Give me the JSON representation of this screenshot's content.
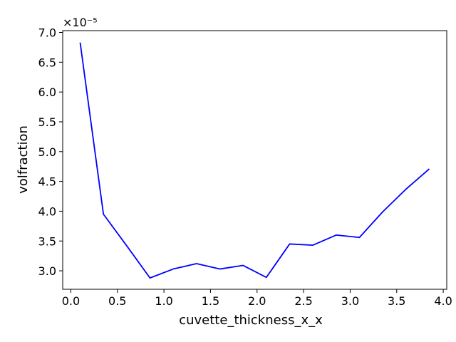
{
  "chart_data": {
    "type": "line",
    "title": "",
    "xlabel": "cuvette_thickness_x_x",
    "ylabel": "volfraction",
    "y_offset_text": "×10⁻⁵",
    "y_scale_factor": 1e-05,
    "xlim": [
      -0.0875,
      4.0375
    ],
    "ylim": [
      2.69e-05,
      7.03e-05
    ],
    "grid": false,
    "legend": "none",
    "x_ticks": [
      0.0,
      0.5,
      1.0,
      1.5,
      2.0,
      2.5,
      3.0,
      3.5,
      4.0
    ],
    "x_tick_labels": [
      "0.0",
      "0.5",
      "1.0",
      "1.5",
      "2.0",
      "2.5",
      "3.0",
      "3.5",
      "4.0"
    ],
    "y_ticks": [
      3.0,
      3.5,
      4.0,
      4.5,
      5.0,
      5.5,
      6.0,
      6.5,
      7.0
    ],
    "y_tick_labels": [
      "3.0",
      "3.5",
      "4.0",
      "4.5",
      "5.0",
      "5.5",
      "6.0",
      "6.5",
      "7.0"
    ],
    "series": [
      {
        "color": "#0000ff",
        "x": [
          0.1,
          0.35,
          0.6,
          0.85,
          1.1,
          1.35,
          1.6,
          1.85,
          2.1,
          2.35,
          2.6,
          2.85,
          3.1,
          3.35,
          3.6,
          3.85
        ],
        "y": [
          6.83e-05,
          3.95e-05,
          3.42e-05,
          2.88e-05,
          3.03e-05,
          3.12e-05,
          3.03e-05,
          3.09e-05,
          2.89e-05,
          3.45e-05,
          3.43e-05,
          3.6e-05,
          3.56e-05,
          3.99e-05,
          4.37e-05,
          4.71e-05
        ]
      }
    ]
  }
}
